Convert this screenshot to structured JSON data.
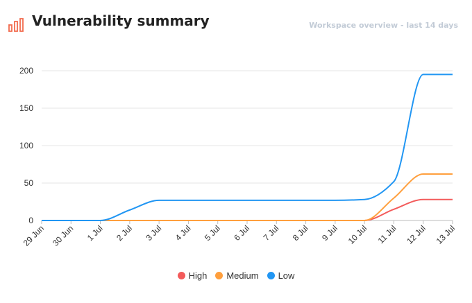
{
  "header": {
    "title": "Vulnerability summary",
    "subtitle": "Workspace overview - last 14 days",
    "icon": "bar-chart-icon",
    "icon_color": "#f26c4f"
  },
  "colors": {
    "high": "#f35b5b",
    "medium": "#ff9f3d",
    "low": "#2196f3",
    "grid": "#e6e6e6",
    "axis": "#bbbbbb",
    "tick_text": "#333333"
  },
  "chart_data": {
    "type": "line",
    "categories": [
      "29 Jun",
      "30 Jun",
      "1 Jul",
      "2 Jul",
      "3 Jul",
      "4 Jul",
      "5 Jul",
      "6 Jul",
      "7 Jul",
      "8 Jul",
      "9 Jul",
      "10 Jul",
      "11 Jul",
      "12 Jul",
      "13 Jul"
    ],
    "series": [
      {
        "name": "High",
        "color": "#f35b5b",
        "values": [
          0,
          0,
          0,
          0,
          0,
          0,
          0,
          0,
          0,
          0,
          0,
          0,
          15,
          28,
          28
        ]
      },
      {
        "name": "Medium",
        "color": "#ff9f3d",
        "values": [
          0,
          0,
          0,
          0,
          0,
          0,
          0,
          0,
          0,
          0,
          0,
          0,
          30,
          62,
          62
        ]
      },
      {
        "name": "Low",
        "color": "#2196f3",
        "values": [
          0,
          0,
          0,
          14,
          27,
          27,
          27,
          27,
          27,
          27,
          27,
          28,
          52,
          195,
          195
        ]
      }
    ],
    "y_ticks": [
      0,
      50,
      100,
      150,
      200
    ],
    "ylim": [
      0,
      200
    ],
    "grid": true,
    "legend_position": "bottom-center"
  }
}
